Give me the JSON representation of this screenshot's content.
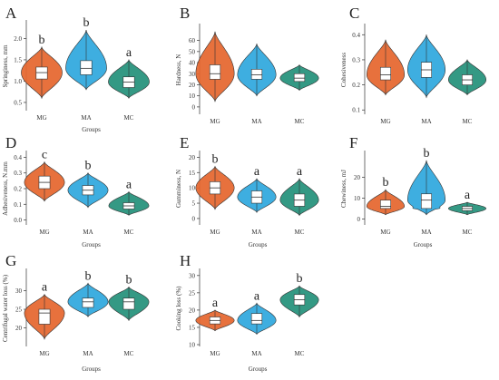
{
  "colors": {
    "MG": "#e5652c",
    "MA": "#2ea7dd",
    "MC": "#23907a",
    "box": "#ffffff",
    "median": "#333333"
  },
  "chart_data": [
    {
      "type": "violin",
      "panel": "A",
      "categories": [
        "MG",
        "MA",
        "MC"
      ],
      "ylabel": "Springiness, mm",
      "xlabel": "Groups",
      "ylim": [
        0.35,
        2.35
      ],
      "yticks": [
        0.5,
        1.0,
        1.5,
        2.0
      ],
      "yticklabels": [
        "0.5",
        "1.0",
        "1.5",
        "2.0"
      ],
      "series": [
        {
          "category": "MG",
          "min": 0.6,
          "q1": 1.05,
          "median": 1.2,
          "q3": 1.33,
          "max": 1.8,
          "sig": "b"
        },
        {
          "category": "MA",
          "min": 0.8,
          "q1": 1.15,
          "median": 1.3,
          "q3": 1.48,
          "max": 2.2,
          "sig": "b"
        },
        {
          "category": "MC",
          "min": 0.6,
          "q1": 0.85,
          "median": 0.98,
          "q3": 1.1,
          "max": 1.5,
          "sig": "a"
        }
      ]
    },
    {
      "type": "violin",
      "panel": "B",
      "categories": [
        "MG",
        "MA",
        "MC"
      ],
      "ylabel": "Hardness, N",
      "xlabel": "",
      "ylim": [
        -5,
        72
      ],
      "yticks": [
        0,
        10,
        20,
        30,
        40,
        50,
        60
      ],
      "yticklabels": [
        "0",
        "10",
        "20",
        "30",
        "40",
        "50",
        "60"
      ],
      "series": [
        {
          "category": "MG",
          "min": 5,
          "q1": 25,
          "median": 30,
          "q3": 38,
          "max": 68,
          "sig": ""
        },
        {
          "category": "MA",
          "min": 10,
          "q1": 25,
          "median": 29,
          "q3": 34,
          "max": 57,
          "sig": ""
        },
        {
          "category": "MC",
          "min": 15,
          "q1": 23,
          "median": 26,
          "q3": 30,
          "max": 38,
          "sig": ""
        }
      ]
    },
    {
      "type": "violin",
      "panel": "C",
      "categories": [
        "MG",
        "MA",
        "MC"
      ],
      "ylabel": "Cohesiveness",
      "xlabel": "",
      "ylim": [
        0.09,
        0.43
      ],
      "yticks": [
        0.1,
        0.2,
        0.3,
        0.4
      ],
      "yticklabels": [
        "0.1",
        "0.2",
        "0.3",
        "0.4"
      ],
      "series": [
        {
          "category": "MG",
          "min": 0.16,
          "q1": 0.22,
          "median": 0.24,
          "q3": 0.27,
          "max": 0.38,
          "sig": ""
        },
        {
          "category": "MA",
          "min": 0.15,
          "q1": 0.23,
          "median": 0.26,
          "q3": 0.29,
          "max": 0.4,
          "sig": ""
        },
        {
          "category": "MC",
          "min": 0.16,
          "q1": 0.2,
          "median": 0.22,
          "q3": 0.24,
          "max": 0.3,
          "sig": ""
        }
      ]
    },
    {
      "type": "violin",
      "panel": "D",
      "categories": [
        "MG",
        "MA",
        "MC"
      ],
      "ylabel": "Adhesiveness, N.mm",
      "xlabel": "Groups",
      "ylim": [
        -0.02,
        0.42
      ],
      "yticks": [
        0.0,
        0.1,
        0.2,
        0.3,
        0.4
      ],
      "yticklabels": [
        "0.0",
        "0.1",
        "0.2",
        "0.3",
        "0.4"
      ],
      "series": [
        {
          "category": "MG",
          "min": 0.12,
          "q1": 0.2,
          "median": 0.24,
          "q3": 0.28,
          "max": 0.37,
          "sig": "c"
        },
        {
          "category": "MA",
          "min": 0.08,
          "q1": 0.16,
          "median": 0.19,
          "q3": 0.22,
          "max": 0.3,
          "sig": "b"
        },
        {
          "category": "MC",
          "min": 0.03,
          "q1": 0.07,
          "median": 0.09,
          "q3": 0.11,
          "max": 0.18,
          "sig": "a"
        }
      ]
    },
    {
      "type": "violin",
      "panel": "E",
      "categories": [
        "MG",
        "MA",
        "MC"
      ],
      "ylabel": "Gumminess, N",
      "xlabel": "Groups",
      "ylim": [
        -1.5,
        21
      ],
      "yticks": [
        0,
        5,
        10,
        15,
        20
      ],
      "yticklabels": [
        "0",
        "5",
        "10",
        "15",
        "20"
      ],
      "series": [
        {
          "category": "MG",
          "min": 3,
          "q1": 8,
          "median": 10,
          "q3": 12,
          "max": 17,
          "sig": "b"
        },
        {
          "category": "MA",
          "min": 2,
          "q1": 5,
          "median": 7,
          "q3": 9,
          "max": 13,
          "sig": "a"
        },
        {
          "category": "MC",
          "min": 1,
          "q1": 4,
          "median": 6,
          "q3": 8,
          "max": 13,
          "sig": "a"
        }
      ]
    },
    {
      "type": "violin",
      "panel": "F",
      "categories": [
        "MG",
        "MA",
        "MC"
      ],
      "ylabel": "Chewiness, mJ",
      "xlabel": "Groups",
      "ylim": [
        -2,
        31
      ],
      "yticks": [
        0,
        10,
        20
      ],
      "yticklabels": [
        "0",
        "10",
        "20"
      ],
      "series": [
        {
          "category": "MG",
          "min": 2,
          "q1": 5,
          "median": 6,
          "q3": 9,
          "max": 14,
          "sig": "b"
        },
        {
          "category": "MA",
          "min": 2,
          "q1": 5,
          "median": 9,
          "q3": 12,
          "max": 28,
          "sig": "b"
        },
        {
          "category": "MC",
          "min": 2,
          "q1": 4,
          "median": 5,
          "q3": 6,
          "max": 8,
          "sig": "a"
        }
      ]
    },
    {
      "type": "violin",
      "panel": "G",
      "categories": [
        "MG",
        "MA",
        "MC"
      ],
      "ylabel": "Centrifugal water loss (%)",
      "xlabel": "Groups",
      "ylim": [
        15.5,
        35
      ],
      "yticks": [
        20,
        25,
        30
      ],
      "yticklabels": [
        "20",
        "25",
        "30"
      ],
      "series": [
        {
          "category": "MG",
          "min": 17,
          "q1": 21,
          "median": 24,
          "q3": 25,
          "max": 29,
          "sig": "a"
        },
        {
          "category": "MA",
          "min": 23,
          "q1": 25.5,
          "median": 27,
          "q3": 28,
          "max": 32,
          "sig": "b"
        },
        {
          "category": "MC",
          "min": 22,
          "q1": 25,
          "median": 27,
          "q3": 28,
          "max": 31,
          "sig": "b"
        }
      ]
    },
    {
      "type": "violin",
      "panel": "H",
      "categories": [
        "MG",
        "MA",
        "MC"
      ],
      "ylabel": "Cooking loss (%)",
      "xlabel": "Groups",
      "ylim": [
        10,
        31
      ],
      "yticks": [
        10,
        15,
        20,
        25,
        30
      ],
      "yticklabels": [
        "10",
        "15",
        "20",
        "25",
        "30"
      ],
      "series": [
        {
          "category": "MG",
          "min": 14,
          "q1": 16,
          "median": 17,
          "q3": 18,
          "max": 20,
          "sig": "a"
        },
        {
          "category": "MA",
          "min": 13,
          "q1": 16,
          "median": 17,
          "q3": 19,
          "max": 22,
          "sig": "a"
        },
        {
          "category": "MC",
          "min": 18,
          "q1": 21.5,
          "median": 23,
          "q3": 24.5,
          "max": 27,
          "sig": "b"
        }
      ]
    }
  ]
}
